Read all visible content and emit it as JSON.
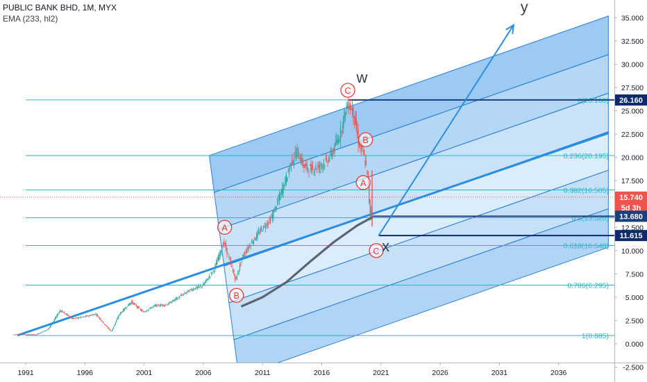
{
  "header": {
    "symbol_line": "PUBLIC BANK BHD, 1M, MYX",
    "indicator_line": "EMA (233, hl2)"
  },
  "colors": {
    "fib_line": "#22b8c8",
    "channel": "#2a7fd4",
    "channel_fill": "#4d9fe8",
    "trend": "#2a8ee0",
    "ema": "#5b6470",
    "candle_up": "#26a69a",
    "candle_down": "#ef5350",
    "wave_label": "#e53935",
    "tag_dark": "#0d2a6a",
    "tag_mid": "#1b3f7a",
    "tag_price": "#ef5350"
  },
  "chart_data": {
    "type": "candlestick",
    "title": "PUBLIC BANK BHD, 1M, MYX",
    "y_axis": {
      "min": -2.5,
      "max": 36.2,
      "ticks": [
        "-2.500",
        "0.000",
        "2.500",
        "5.000",
        "7.500",
        "10.000",
        "12.500",
        "15.000",
        "17.500",
        "20.000",
        "22.500",
        "25.000",
        "27.500",
        "30.000",
        "32.500",
        "35.000"
      ]
    },
    "x_axis": {
      "min": 1989.5,
      "max": 2040.2,
      "ticks": [
        "1991",
        "1996",
        "2001",
        "2006",
        "2011",
        "2016",
        "2021",
        "2026",
        "2031",
        "2036"
      ]
    },
    "price_path": [
      [
        1990.0,
        1.0
      ],
      [
        1992.0,
        1.0
      ],
      [
        1993.0,
        1.6
      ],
      [
        1994.0,
        3.6
      ],
      [
        1995.0,
        2.7
      ],
      [
        1996.0,
        2.9
      ],
      [
        1997.0,
        3.2
      ],
      [
        1997.8,
        2.0
      ],
      [
        1998.3,
        1.3
      ],
      [
        1999.0,
        3.2
      ],
      [
        2000.0,
        4.5
      ],
      [
        2001.0,
        3.4
      ],
      [
        2002.0,
        4.1
      ],
      [
        2003.0,
        4.2
      ],
      [
        2004.0,
        5.0
      ],
      [
        2005.0,
        5.8
      ],
      [
        2006.0,
        6.2
      ],
      [
        2007.0,
        8.0
      ],
      [
        2007.8,
        10.9
      ],
      [
        2008.3,
        9.0
      ],
      [
        2008.8,
        6.8
      ],
      [
        2009.4,
        9.4
      ],
      [
        2010.0,
        10.6
      ],
      [
        2011.0,
        12.3
      ],
      [
        2011.8,
        13.4
      ],
      [
        2012.5,
        15.7
      ],
      [
        2013.0,
        17.5
      ],
      [
        2013.5,
        19.5
      ],
      [
        2014.0,
        20.6
      ],
      [
        2014.6,
        19.0
      ],
      [
        2015.2,
        18.8
      ],
      [
        2015.8,
        19.0
      ],
      [
        2016.5,
        19.6
      ],
      [
        2017.0,
        20.6
      ],
      [
        2017.6,
        22.4
      ],
      [
        2018.0,
        24.6
      ],
      [
        2018.3,
        25.9
      ],
      [
        2018.8,
        24.6
      ],
      [
        2019.2,
        21.5
      ],
      [
        2019.6,
        20.4
      ],
      [
        2019.9,
        18.5
      ],
      [
        2020.2,
        13.2
      ],
      [
        2020.3,
        15.74
      ]
    ],
    "ema": {
      "name": "EMA (233, hl2)",
      "points": [
        [
          2009.2,
          4.0
        ],
        [
          2011.0,
          5.0
        ],
        [
          2013.0,
          6.6
        ],
        [
          2015.0,
          8.8
        ],
        [
          2017.0,
          10.9
        ],
        [
          2019.0,
          12.7
        ],
        [
          2020.3,
          13.6
        ]
      ]
    },
    "fibonacci": [
      {
        "label": "0(26.160)",
        "value": 26.16
      },
      {
        "label": "0.236(20.195)",
        "value": 20.195
      },
      {
        "label": "0.382(16.505)",
        "value": 16.505
      },
      {
        "label": "0.5(13.520)",
        "value": 13.52
      },
      {
        "label": "0.618(10.540)",
        "value": 10.54
      },
      {
        "label": "0.786(6.295)",
        "value": 6.295
      },
      {
        "label": "1(0.885)",
        "value": 0.885
      }
    ],
    "trendline": {
      "from": [
        1990.3,
        0.9
      ],
      "to": [
        2040.2,
        22.6
      ]
    },
    "channel": {
      "bottom_left": [
        2009.0,
        -3.5
      ],
      "top_left": [
        2006.5,
        20.2
      ],
      "slope_per_year": 0.444,
      "bands": 6
    },
    "projection_arrow": {
      "from": [
        2020.8,
        11.6
      ],
      "to": [
        2032.2,
        34.2
      ]
    },
    "horizontal_lines": [
      {
        "from": 2020.3,
        "value": 13.68,
        "color": "#1b3f7a"
      },
      {
        "from": 2020.8,
        "value": 11.615,
        "color": "#0d2a6a"
      },
      {
        "from": 2018.3,
        "value": 26.16,
        "color": "#1b3f7a"
      }
    ],
    "current_price_line": 15.74,
    "wave_labels": [
      {
        "text": "A",
        "x": 2007.8,
        "value": 12.5
      },
      {
        "text": "B",
        "x": 2008.8,
        "value": 5.2
      },
      {
        "text": "C",
        "x": 2018.2,
        "value": 27.2
      },
      {
        "text": "B",
        "x": 2019.7,
        "value": 21.9
      },
      {
        "text": "A",
        "x": 2019.5,
        "value": 17.3
      },
      {
        "text": "C",
        "x": 2020.6,
        "value": 10.0
      }
    ],
    "wave_letters": [
      {
        "text": "W",
        "x": 2019.4,
        "value": 28.0
      },
      {
        "text": "X",
        "x": 2021.4,
        "value": 9.9
      },
      {
        "text": "Y",
        "x": 2033.1,
        "value": 35.6
      }
    ],
    "price_tags": [
      {
        "text": "26.160",
        "value": 26.16,
        "kind": "dark"
      },
      {
        "text": "15.740",
        "value": 15.74,
        "kind": "price"
      },
      {
        "text": "5d 3h",
        "value": 14.6,
        "kind": "price"
      },
      {
        "text": "13.680",
        "value": 13.68,
        "kind": "mid"
      },
      {
        "text": "11.615",
        "value": 11.615,
        "kind": "dark"
      }
    ]
  }
}
